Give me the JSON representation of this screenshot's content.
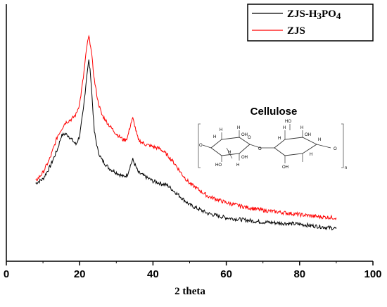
{
  "chart_data": {
    "type": "line",
    "xlabel": "2 theta",
    "ylabel": "",
    "xlim": [
      0,
      100
    ],
    "x_ticks": [
      "0",
      "20",
      "40",
      "60",
      "80",
      "100"
    ],
    "y_ticks_labeled": false,
    "legend_position": "top-right",
    "legend_box": true,
    "series": [
      {
        "name": "ZJS-H3PO4",
        "name_main": "ZJS-H",
        "name_sub1": "3",
        "name_mid": "PO",
        "name_sub2": "4",
        "color": "#000000",
        "points": [
          [
            8,
            0.28
          ],
          [
            10,
            0.3
          ],
          [
            12,
            0.36
          ],
          [
            14,
            0.44
          ],
          [
            15,
            0.5
          ],
          [
            16,
            0.51
          ],
          [
            17,
            0.5
          ],
          [
            18,
            0.48
          ],
          [
            19,
            0.46
          ],
          [
            20,
            0.5
          ],
          [
            21,
            0.62
          ],
          [
            22,
            0.79
          ],
          [
            22.5,
            0.85
          ],
          [
            23,
            0.78
          ],
          [
            24,
            0.52
          ],
          [
            25,
            0.43
          ],
          [
            26,
            0.39
          ],
          [
            28,
            0.35
          ],
          [
            30,
            0.33
          ],
          [
            32,
            0.31
          ],
          [
            33,
            0.32
          ],
          [
            34,
            0.37
          ],
          [
            34.5,
            0.39
          ],
          [
            35,
            0.37
          ],
          [
            36,
            0.33
          ],
          [
            38,
            0.31
          ],
          [
            40,
            0.29
          ],
          [
            42,
            0.28
          ],
          [
            44,
            0.27
          ],
          [
            46,
            0.24
          ],
          [
            48,
            0.21
          ],
          [
            50,
            0.18
          ],
          [
            55,
            0.14
          ],
          [
            60,
            0.12
          ],
          [
            65,
            0.11
          ],
          [
            70,
            0.1
          ],
          [
            75,
            0.095
          ],
          [
            80,
            0.09
          ],
          [
            85,
            0.08
          ],
          [
            90,
            0.07
          ]
        ]
      },
      {
        "name": "ZJS",
        "color": "#ff0000",
        "points": [
          [
            8,
            0.29
          ],
          [
            10,
            0.33
          ],
          [
            12,
            0.4
          ],
          [
            14,
            0.5
          ],
          [
            16,
            0.56
          ],
          [
            18,
            0.58
          ],
          [
            19,
            0.6
          ],
          [
            20,
            0.65
          ],
          [
            21,
            0.77
          ],
          [
            22,
            0.92
          ],
          [
            22.5,
            0.96
          ],
          [
            23,
            0.92
          ],
          [
            24,
            0.76
          ],
          [
            25,
            0.66
          ],
          [
            26,
            0.6
          ],
          [
            28,
            0.55
          ],
          [
            30,
            0.51
          ],
          [
            32,
            0.48
          ],
          [
            33,
            0.49
          ],
          [
            34,
            0.56
          ],
          [
            34.5,
            0.58
          ],
          [
            35,
            0.55
          ],
          [
            36,
            0.48
          ],
          [
            38,
            0.46
          ],
          [
            40,
            0.45
          ],
          [
            42,
            0.44
          ],
          [
            44,
            0.41
          ],
          [
            46,
            0.37
          ],
          [
            48,
            0.32
          ],
          [
            50,
            0.28
          ],
          [
            55,
            0.22
          ],
          [
            60,
            0.19
          ],
          [
            65,
            0.17
          ],
          [
            70,
            0.155
          ],
          [
            75,
            0.145
          ],
          [
            80,
            0.135
          ],
          [
            85,
            0.125
          ],
          [
            90,
            0.12
          ]
        ]
      }
    ],
    "inset": {
      "title": "Cellulose",
      "subscript": "n",
      "atoms": [
        "O",
        "O",
        "O",
        "O",
        "H",
        "H",
        "H",
        "H",
        "H",
        "H",
        "H",
        "H",
        "H",
        "H",
        "OH",
        "OH",
        "OH",
        "OH",
        "HO",
        "HO"
      ]
    }
  }
}
